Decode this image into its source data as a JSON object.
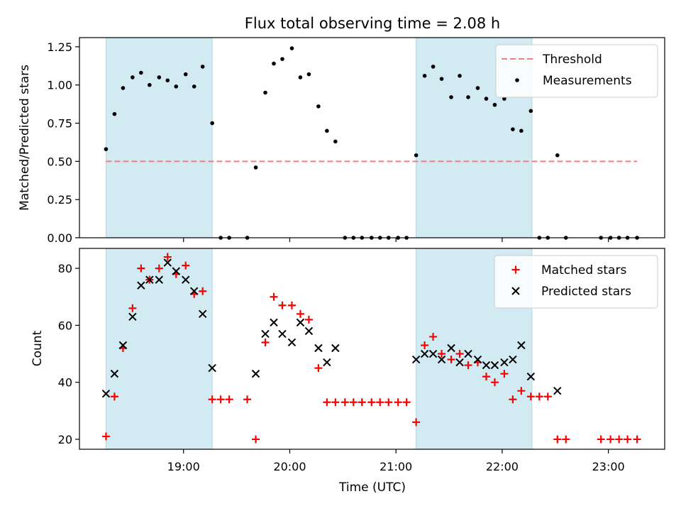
{
  "title": "Flux total observing time = 2.08 h",
  "xlabel": "Time (UTC)",
  "x_ticks": [
    "19:00",
    "20:00",
    "21:00",
    "22:00",
    "23:00"
  ],
  "x_tick_values": [
    19.0,
    20.0,
    21.0,
    22.0,
    23.0
  ],
  "x_range": [
    18.02,
    23.53
  ],
  "shaded_intervals": [
    [
      18.27,
      19.27
    ],
    [
      21.19,
      22.28
    ]
  ],
  "shade_color": "#add8e6",
  "chart_data": [
    {
      "type": "scatter",
      "panel": "top",
      "ylabel": "Matched/Predicted stars",
      "ylim": [
        0.0,
        1.31
      ],
      "y_ticks": [
        "0.00",
        "0.25",
        "0.50",
        "0.75",
        "1.00",
        "1.25"
      ],
      "y_tick_values": [
        0.0,
        0.25,
        0.5,
        0.75,
        1.0,
        1.25
      ],
      "legend_position": "top-right",
      "threshold": {
        "name": "Threshold",
        "y": 0.5,
        "x": [
          18.27,
          23.27
        ],
        "color": "#f08080",
        "style": "dashed"
      },
      "series": [
        {
          "name": "Measurements",
          "color": "#000000",
          "marker": "dot",
          "x": [
            18.27,
            18.35,
            18.43,
            18.52,
            18.6,
            18.68,
            18.77,
            18.85,
            18.93,
            19.02,
            19.1,
            19.18,
            19.27,
            19.35,
            19.43,
            19.6,
            19.68,
            19.77,
            19.85,
            19.93,
            20.02,
            20.1,
            20.18,
            20.27,
            20.35,
            20.43,
            20.52,
            20.6,
            20.68,
            20.77,
            20.85,
            20.93,
            21.02,
            21.1,
            21.19,
            21.27,
            21.35,
            21.43,
            21.52,
            21.6,
            21.68,
            21.77,
            21.85,
            21.93,
            22.02,
            22.1,
            22.18,
            22.27,
            22.35,
            22.43,
            22.52,
            22.6,
            22.93,
            23.02,
            23.1,
            23.18,
            23.27
          ],
          "y": [
            0.58,
            0.81,
            0.98,
            1.05,
            1.08,
            1.0,
            1.05,
            1.03,
            0.99,
            1.07,
            0.99,
            1.12,
            0.75,
            0.0,
            0.0,
            0.0,
            0.46,
            0.95,
            1.14,
            1.17,
            1.24,
            1.05,
            1.07,
            0.86,
            0.7,
            0.63,
            0.0,
            0.0,
            0.0,
            0.0,
            0.0,
            0.0,
            0.0,
            0.0,
            0.54,
            1.06,
            1.12,
            1.04,
            0.92,
            1.06,
            0.92,
            0.98,
            0.91,
            0.87,
            0.91,
            0.71,
            0.7,
            0.83,
            0.0,
            0.0,
            0.54,
            0.0,
            0.0,
            0.0,
            0.0,
            0.0,
            0.0
          ]
        }
      ]
    },
    {
      "type": "scatter",
      "panel": "bottom",
      "ylabel": "Count",
      "ylim": [
        16.5,
        87
      ],
      "y_ticks": [
        "20",
        "40",
        "60",
        "80"
      ],
      "y_tick_values": [
        20,
        40,
        60,
        80
      ],
      "legend_position": "top-right",
      "series": [
        {
          "name": "Matched stars",
          "color": "#ff0000",
          "marker": "plus",
          "x": [
            18.27,
            18.35,
            18.43,
            18.52,
            18.6,
            18.68,
            18.77,
            18.85,
            18.93,
            19.02,
            19.1,
            19.18,
            19.27,
            19.35,
            19.43,
            19.6,
            19.68,
            19.77,
            19.85,
            19.93,
            20.02,
            20.1,
            20.18,
            20.27,
            20.35,
            20.43,
            20.52,
            20.6,
            20.68,
            20.77,
            20.85,
            20.93,
            21.02,
            21.1,
            21.19,
            21.27,
            21.35,
            21.43,
            21.52,
            21.6,
            21.68,
            21.77,
            21.85,
            21.93,
            22.02,
            22.1,
            22.18,
            22.27,
            22.35,
            22.43,
            22.52,
            22.6,
            22.93,
            23.02,
            23.1,
            23.18,
            23.27
          ],
          "y": [
            21,
            35,
            52,
            66,
            80,
            76,
            80,
            84,
            78,
            81,
            71,
            72,
            34,
            34,
            34,
            34,
            20,
            54,
            70,
            67,
            67,
            64,
            62,
            45,
            33,
            33,
            33,
            33,
            33,
            33,
            33,
            33,
            33,
            33,
            26,
            53,
            56,
            50,
            48,
            50,
            46,
            47,
            42,
            40,
            43,
            34,
            37,
            35,
            35,
            35,
            20,
            20,
            20,
            20,
            20,
            20,
            20
          ]
        },
        {
          "name": "Predicted stars",
          "color": "#000000",
          "marker": "x",
          "x": [
            18.27,
            18.35,
            18.43,
            18.52,
            18.6,
            18.68,
            18.77,
            18.85,
            18.93,
            19.02,
            19.1,
            19.18,
            19.27,
            19.68,
            19.77,
            19.85,
            19.93,
            20.02,
            20.1,
            20.18,
            20.27,
            20.35,
            20.43,
            21.19,
            21.27,
            21.35,
            21.43,
            21.52,
            21.6,
            21.68,
            21.77,
            21.85,
            21.93,
            22.02,
            22.1,
            22.18,
            22.27,
            22.52
          ],
          "y": [
            36,
            43,
            53,
            63,
            74,
            76,
            76,
            82,
            79,
            76,
            72,
            64,
            45,
            43,
            57,
            61,
            57,
            54,
            61,
            58,
            52,
            47,
            52,
            48,
            50,
            50,
            48,
            52,
            47,
            50,
            48,
            46,
            46,
            47,
            48,
            53,
            42,
            37
          ]
        }
      ]
    }
  ]
}
